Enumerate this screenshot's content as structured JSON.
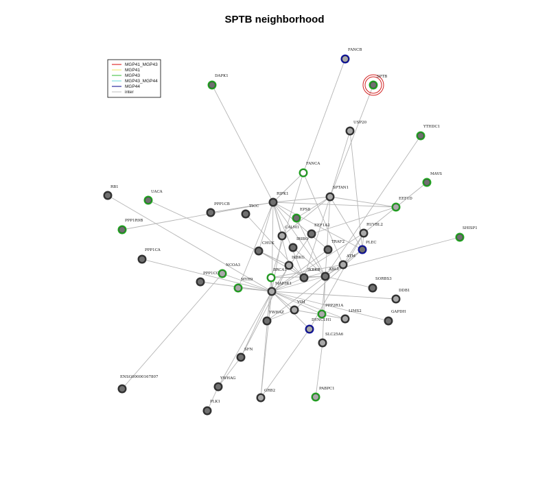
{
  "title": "SPTB neighborhood",
  "colors": {
    "edge": "#b4b4b4",
    "node_gray": "#a9a9a9",
    "node_dark": "#707070",
    "green": "#23a523",
    "blue": "#10149a",
    "red": "#d22020"
  },
  "legend": [
    {
      "label": "MGP41_MGP43",
      "color": "#e03030"
    },
    {
      "label": "MGP41",
      "color": "#f0e87a"
    },
    {
      "label": "MGP43",
      "color": "#52c652"
    },
    {
      "label": "MGP43_MGP44",
      "color": "#7fe0e0"
    },
    {
      "label": "MGP44",
      "color": "#2a2a9e"
    },
    {
      "label": "inter",
      "color": "#c8c8c8"
    }
  ],
  "nodes": [
    {
      "id": "FANCB",
      "ring": "blue",
      "fill": "gray"
    },
    {
      "id": "SPTB",
      "ring": "green",
      "fill": "dark",
      "target": true
    },
    {
      "id": "DAPK1",
      "ring": "green",
      "fill": "dark"
    },
    {
      "id": "USP20",
      "ring": "gray",
      "fill": "gray"
    },
    {
      "id": "YTHDC1",
      "ring": "green",
      "fill": "dark"
    },
    {
      "id": "FANCA",
      "ring": "green",
      "fill": "white"
    },
    {
      "id": "MAVS",
      "ring": "green",
      "fill": "dark"
    },
    {
      "id": "RB1",
      "ring": "gray",
      "fill": "dark"
    },
    {
      "id": "UACA",
      "ring": "green",
      "fill": "dark"
    },
    {
      "id": "RIPK1",
      "ring": "gray",
      "fill": "dark"
    },
    {
      "id": "SPTAN1",
      "ring": "gray",
      "fill": "gray"
    },
    {
      "id": "EEF1D",
      "ring": "green",
      "fill": "gray"
    },
    {
      "id": "PPP1CB",
      "ring": "gray",
      "fill": "dark"
    },
    {
      "id": "TICC",
      "ring": "gray",
      "fill": "dark"
    },
    {
      "id": "EPS8",
      "ring": "green",
      "fill": "dark"
    },
    {
      "id": "PPP1R9B",
      "ring": "green",
      "fill": "dark"
    },
    {
      "id": "CALM1",
      "ring": "gray",
      "fill": "gray"
    },
    {
      "id": "EEF1A2",
      "ring": "gray",
      "fill": "dark"
    },
    {
      "id": "RUVBL2",
      "ring": "gray",
      "fill": "gray"
    },
    {
      "id": "SHISP1",
      "ring": "green",
      "fill": "dark"
    },
    {
      "id": "IRIBO",
      "ring": "gray",
      "fill": "dark"
    },
    {
      "id": "CHUK",
      "ring": "gray",
      "fill": "dark"
    },
    {
      "id": "TRAF2",
      "ring": "gray",
      "fill": "dark"
    },
    {
      "id": "PLEC",
      "ring": "blue",
      "fill": "dark"
    },
    {
      "id": "PPP1CA",
      "ring": "gray",
      "fill": "dark"
    },
    {
      "id": "IKBKG",
      "ring": "gray",
      "fill": "gray"
    },
    {
      "id": "ATM",
      "ring": "gray",
      "fill": "gray"
    },
    {
      "id": "NCOA3",
      "ring": "green",
      "fill": "gray"
    },
    {
      "id": "BRCA1",
      "ring": "green",
      "fill": "white"
    },
    {
      "id": "ABL1",
      "ring": "gray",
      "fill": "dark"
    },
    {
      "id": "IKBKB",
      "ring": "gray",
      "fill": "dark"
    },
    {
      "id": "PPP1CC",
      "ring": "gray",
      "fill": "dark"
    },
    {
      "id": "MYH9",
      "ring": "green",
      "fill": "gray"
    },
    {
      "id": "MAP3K1",
      "ring": "gray",
      "fill": "gray"
    },
    {
      "id": "SORBS3",
      "ring": "gray",
      "fill": "dark"
    },
    {
      "id": "DDB1",
      "ring": "gray",
      "fill": "gray"
    },
    {
      "id": "VIM",
      "ring": "gray",
      "fill": "gray"
    },
    {
      "id": "PPP2R1A",
      "ring": "green",
      "fill": "gray"
    },
    {
      "id": "YWHAZ",
      "ring": "gray",
      "fill": "dark"
    },
    {
      "id": "LIMS2",
      "ring": "gray",
      "fill": "gray"
    },
    {
      "id": "GAPDH",
      "ring": "gray",
      "fill": "dark"
    },
    {
      "id": "DYNC1H1",
      "ring": "blue",
      "fill": "gray"
    },
    {
      "id": "SLC25A6",
      "ring": "gray",
      "fill": "gray"
    },
    {
      "id": "SFN",
      "ring": "gray",
      "fill": "dark"
    },
    {
      "id": "ENSG00000167807",
      "ring": "gray",
      "fill": "dark"
    },
    {
      "id": "YWHAG",
      "ring": "gray",
      "fill": "dark"
    },
    {
      "id": "GRB2",
      "ring": "gray",
      "fill": "gray"
    },
    {
      "id": "PABPC1",
      "ring": "green",
      "fill": "gray"
    },
    {
      "id": "PLK1",
      "ring": "gray",
      "fill": "dark"
    }
  ],
  "node_labels": {
    "FANCB": "FANCB",
    "SPTB": "SPTB",
    "DAPK1": "DAPK1",
    "USP20": "USP20",
    "YTHDC1": "YTHDC1",
    "FANCA": "FANCA",
    "MAVS": "MAVS",
    "RB1": "RB1",
    "UACA": "UACA",
    "RIPK1": "RIPK1",
    "SPTAN1": "SPTAN1",
    "EEF1D": "EEF1D",
    "PPP1CB": "PPP1CB",
    "TICC": "TICC",
    "EPS8": "EPS8",
    "PPP1R9B": "PPP1R9B",
    "CALM1": "CALM1",
    "EEF1A2": "EEF1A2",
    "RUVBL2": "RUVBL2",
    "SHISP1": "SHISP1",
    "IRIBO": "IRIBO",
    "CHUK": "CHUK",
    "TRAF2": "TRAF2",
    "PLEC": "PLEC",
    "PPP1CA": "PPP1CA",
    "IKBKG": "IKBKG",
    "ATM": "ATM",
    "NCOA3": "NCOA3",
    "BRCA1": "BRCA1",
    "ABL1": "ABL1",
    "IKBKB": "IKBKB",
    "PPP1CC": "PPP1CC",
    "MYH9": "MYH9",
    "MAP3K1": "MAP3K1",
    "SORBS3": "SORBS3",
    "DDB1": "DDB1",
    "VIM": "VIM",
    "PPP2R1A": "PPP2R1A",
    "YWHAZ": "YWHAZ",
    "LIMS2": "LIMS2",
    "GAPDH": "GAPDH",
    "DYNC1H1": "DYNC1H1",
    "SLC25A6": "SLC25A6",
    "SFN": "SFN",
    "ENSG00000167807": "ENSG00000167807",
    "YWHAG": "YWHAG",
    "GRB2": "GRB2",
    "PABPC1": "PABPC1",
    "PLK1": "PLK1"
  },
  "edges": [
    [
      "FANCB",
      "FANCA"
    ],
    [
      "SPTB",
      "SPTAN1"
    ],
    [
      "DAPK1",
      "RIPK1"
    ],
    [
      "USP20",
      "SPTAN1"
    ],
    [
      "USP20",
      "PLEC"
    ],
    [
      "YTHDC1",
      "ABL1"
    ],
    [
      "FANCA",
      "RIPK1"
    ],
    [
      "FANCA",
      "ATM"
    ],
    [
      "FANCA",
      "BRCA1"
    ],
    [
      "MAVS",
      "RUVBL2"
    ],
    [
      "RB1",
      "MAP3K1"
    ],
    [
      "UACA",
      "IKBKG"
    ],
    [
      "RIPK1",
      "SPTAN1"
    ],
    [
      "RIPK1",
      "EEF1D"
    ],
    [
      "RIPK1",
      "PPP1CB"
    ],
    [
      "RIPK1",
      "PPP1R9B"
    ],
    [
      "RIPK1",
      "CALM1"
    ],
    [
      "RIPK1",
      "CHUK"
    ],
    [
      "RIPK1",
      "TRAF2"
    ],
    [
      "RIPK1",
      "IKBKB"
    ],
    [
      "RIPK1",
      "IKBKG"
    ],
    [
      "RIPK1",
      "PLEC"
    ],
    [
      "RIPK1",
      "ABL1"
    ],
    [
      "RIPK1",
      "MYH9"
    ],
    [
      "RIPK1",
      "MAP3K1"
    ],
    [
      "SPTAN1",
      "EEF1D"
    ],
    [
      "SPTAN1",
      "EPS8"
    ],
    [
      "SPTAN1",
      "CALM1"
    ],
    [
      "SPTAN1",
      "ABL1"
    ],
    [
      "SPTAN1",
      "PLEC"
    ],
    [
      "SPTAN1",
      "IKBKB"
    ],
    [
      "EEF1D",
      "EEF1A2"
    ],
    [
      "TICC",
      "IKBKB"
    ],
    [
      "EPS8",
      "ABL1"
    ],
    [
      "CALM1",
      "MAP3K1"
    ],
    [
      "EEF1A2",
      "MAP3K1"
    ],
    [
      "RUVBL2",
      "PLEC"
    ],
    [
      "RUVBL2",
      "ATM"
    ],
    [
      "RUVBL2",
      "MAP3K1"
    ],
    [
      "RUVBL2",
      "DYNC1H1"
    ],
    [
      "SHISP1",
      "IKBKB"
    ],
    [
      "IRIBO",
      "ABL1"
    ],
    [
      "CHUK",
      "IKBKB"
    ],
    [
      "CHUK",
      "IKBKG"
    ],
    [
      "TRAF2",
      "MAP3K1"
    ],
    [
      "PLEC",
      "ABL1"
    ],
    [
      "PLEC",
      "VIM"
    ],
    [
      "PPP1CA",
      "MAP3K1"
    ],
    [
      "IKBKG",
      "IKBKB"
    ],
    [
      "IKBKG",
      "SFN"
    ],
    [
      "ATM",
      "ABL1"
    ],
    [
      "ATM",
      "BRCA1"
    ],
    [
      "NCOA3",
      "MAP3K1"
    ],
    [
      "NCOA3",
      "ENSG00000167807"
    ],
    [
      "BRCA1",
      "MAP3K1"
    ],
    [
      "BRCA1",
      "ABL1"
    ],
    [
      "BRCA1",
      "GRB2"
    ],
    [
      "ABL1",
      "MAP3K1"
    ],
    [
      "ABL1",
      "IKBKB"
    ],
    [
      "ABL1",
      "SORBS3"
    ],
    [
      "ABL1",
      "PPP2R1A"
    ],
    [
      "ABL1",
      "YWHAZ"
    ],
    [
      "ABL1",
      "SLC25A6"
    ],
    [
      "IKBKB",
      "MAP3K1"
    ],
    [
      "PPP1CC",
      "MAP3K1"
    ],
    [
      "MYH9",
      "MAP3K1"
    ],
    [
      "MAP3K1",
      "DDB1"
    ],
    [
      "MAP3K1",
      "VIM"
    ],
    [
      "MAP3K1",
      "PPP2R1A"
    ],
    [
      "MAP3K1",
      "LIMS2"
    ],
    [
      "MAP3K1",
      "GAPDH"
    ],
    [
      "MAP3K1",
      "DYNC1H1"
    ],
    [
      "MAP3K1",
      "YWHAZ"
    ],
    [
      "MAP3K1",
      "SFN"
    ],
    [
      "MAP3K1",
      "YWHAG"
    ],
    [
      "MAP3K1",
      "GRB2"
    ],
    [
      "VIM",
      "YWHAZ"
    ],
    [
      "VIM",
      "LIMS2"
    ],
    [
      "DYNC1H1",
      "GRB2"
    ],
    [
      "SLC25A6",
      "PABPC1"
    ],
    [
      "SFN",
      "YWHAG"
    ],
    [
      "YWHAG",
      "PLK1"
    ]
  ]
}
